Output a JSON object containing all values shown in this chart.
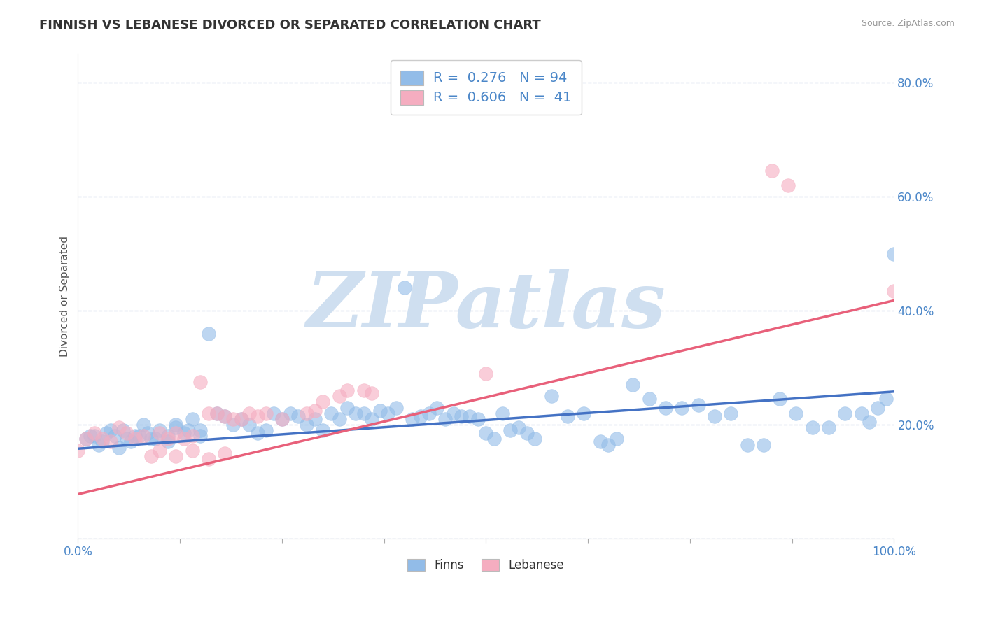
{
  "title": "FINNISH VS LEBANESE DIVORCED OR SEPARATED CORRELATION CHART",
  "source_text": "Source: ZipAtlas.com",
  "ylabel": "Divorced or Separated",
  "xlim": [
    0,
    1
  ],
  "ylim": [
    0,
    0.85
  ],
  "x_ticks": [
    0,
    0.125,
    0.25,
    0.375,
    0.5,
    0.625,
    0.75,
    0.875,
    1.0
  ],
  "x_tick_labels": [
    "0.0%",
    "",
    "",
    "",
    "",
    "",
    "",
    "",
    "100.0%"
  ],
  "y_ticks": [
    0.0,
    0.2,
    0.4,
    0.6,
    0.8
  ],
  "y_tick_labels": [
    "",
    "20.0%",
    "40.0%",
    "60.0%",
    "80.0%"
  ],
  "finn_color": "#92bce8",
  "lebanese_color": "#f5adc0",
  "finn_line_color": "#4472c4",
  "lebanese_line_color": "#e8607a",
  "title_fontsize": 13,
  "label_fontsize": 11,
  "tick_fontsize": 12,
  "watermark": "ZIPatlas",
  "watermark_color": "#cfdff0",
  "legend_R_finn": "R =  0.276",
  "legend_N_finn": "N = 94",
  "legend_R_leb": "R =  0.606",
  "legend_N_leb": "N =  41",
  "finn_intercept": 0.158,
  "finn_slope": 0.1,
  "leb_intercept": 0.078,
  "leb_slope": 0.34,
  "background_color": "#ffffff",
  "grid_color": "#c8d4e8",
  "finn_dots": [
    [
      0.01,
      0.175
    ],
    [
      0.015,
      0.18
    ],
    [
      0.02,
      0.18
    ],
    [
      0.025,
      0.165
    ],
    [
      0.03,
      0.17
    ],
    [
      0.035,
      0.185
    ],
    [
      0.04,
      0.19
    ],
    [
      0.045,
      0.18
    ],
    [
      0.05,
      0.16
    ],
    [
      0.055,
      0.19
    ],
    [
      0.06,
      0.175
    ],
    [
      0.065,
      0.17
    ],
    [
      0.07,
      0.18
    ],
    [
      0.075,
      0.18
    ],
    [
      0.08,
      0.2
    ],
    [
      0.085,
      0.185
    ],
    [
      0.09,
      0.175
    ],
    [
      0.095,
      0.175
    ],
    [
      0.1,
      0.19
    ],
    [
      0.11,
      0.17
    ],
    [
      0.11,
      0.18
    ],
    [
      0.12,
      0.2
    ],
    [
      0.12,
      0.195
    ],
    [
      0.13,
      0.185
    ],
    [
      0.135,
      0.19
    ],
    [
      0.14,
      0.21
    ],
    [
      0.15,
      0.19
    ],
    [
      0.15,
      0.18
    ],
    [
      0.16,
      0.36
    ],
    [
      0.17,
      0.22
    ],
    [
      0.18,
      0.215
    ],
    [
      0.19,
      0.2
    ],
    [
      0.2,
      0.21
    ],
    [
      0.21,
      0.2
    ],
    [
      0.22,
      0.185
    ],
    [
      0.23,
      0.19
    ],
    [
      0.24,
      0.22
    ],
    [
      0.25,
      0.21
    ],
    [
      0.26,
      0.22
    ],
    [
      0.27,
      0.215
    ],
    [
      0.28,
      0.2
    ],
    [
      0.29,
      0.21
    ],
    [
      0.3,
      0.19
    ],
    [
      0.31,
      0.22
    ],
    [
      0.32,
      0.21
    ],
    [
      0.33,
      0.23
    ],
    [
      0.34,
      0.22
    ],
    [
      0.35,
      0.22
    ],
    [
      0.36,
      0.21
    ],
    [
      0.37,
      0.225
    ],
    [
      0.38,
      0.22
    ],
    [
      0.39,
      0.23
    ],
    [
      0.4,
      0.44
    ],
    [
      0.41,
      0.21
    ],
    [
      0.42,
      0.215
    ],
    [
      0.43,
      0.22
    ],
    [
      0.44,
      0.23
    ],
    [
      0.45,
      0.21
    ],
    [
      0.46,
      0.22
    ],
    [
      0.47,
      0.215
    ],
    [
      0.48,
      0.215
    ],
    [
      0.49,
      0.21
    ],
    [
      0.5,
      0.185
    ],
    [
      0.51,
      0.175
    ],
    [
      0.52,
      0.22
    ],
    [
      0.53,
      0.19
    ],
    [
      0.54,
      0.195
    ],
    [
      0.55,
      0.185
    ],
    [
      0.56,
      0.175
    ],
    [
      0.58,
      0.25
    ],
    [
      0.6,
      0.215
    ],
    [
      0.62,
      0.22
    ],
    [
      0.64,
      0.17
    ],
    [
      0.65,
      0.165
    ],
    [
      0.66,
      0.175
    ],
    [
      0.68,
      0.27
    ],
    [
      0.7,
      0.245
    ],
    [
      0.72,
      0.23
    ],
    [
      0.74,
      0.23
    ],
    [
      0.76,
      0.235
    ],
    [
      0.78,
      0.215
    ],
    [
      0.8,
      0.22
    ],
    [
      0.82,
      0.165
    ],
    [
      0.84,
      0.165
    ],
    [
      0.86,
      0.245
    ],
    [
      0.88,
      0.22
    ],
    [
      0.9,
      0.195
    ],
    [
      0.92,
      0.195
    ],
    [
      0.94,
      0.22
    ],
    [
      0.96,
      0.22
    ],
    [
      0.97,
      0.205
    ],
    [
      0.98,
      0.23
    ],
    [
      0.99,
      0.245
    ],
    [
      1.0,
      0.5
    ]
  ],
  "leb_dots": [
    [
      0.0,
      0.155
    ],
    [
      0.01,
      0.175
    ],
    [
      0.02,
      0.185
    ],
    [
      0.03,
      0.175
    ],
    [
      0.04,
      0.17
    ],
    [
      0.05,
      0.195
    ],
    [
      0.06,
      0.185
    ],
    [
      0.07,
      0.175
    ],
    [
      0.08,
      0.18
    ],
    [
      0.09,
      0.145
    ],
    [
      0.1,
      0.185
    ],
    [
      0.1,
      0.155
    ],
    [
      0.11,
      0.175
    ],
    [
      0.12,
      0.185
    ],
    [
      0.12,
      0.145
    ],
    [
      0.13,
      0.175
    ],
    [
      0.14,
      0.18
    ],
    [
      0.14,
      0.155
    ],
    [
      0.15,
      0.275
    ],
    [
      0.16,
      0.22
    ],
    [
      0.16,
      0.14
    ],
    [
      0.17,
      0.22
    ],
    [
      0.18,
      0.215
    ],
    [
      0.18,
      0.15
    ],
    [
      0.19,
      0.21
    ],
    [
      0.2,
      0.21
    ],
    [
      0.21,
      0.22
    ],
    [
      0.22,
      0.215
    ],
    [
      0.23,
      0.22
    ],
    [
      0.25,
      0.21
    ],
    [
      0.28,
      0.22
    ],
    [
      0.29,
      0.225
    ],
    [
      0.3,
      0.24
    ],
    [
      0.32,
      0.25
    ],
    [
      0.33,
      0.26
    ],
    [
      0.35,
      0.26
    ],
    [
      0.36,
      0.255
    ],
    [
      0.5,
      0.29
    ],
    [
      0.85,
      0.645
    ],
    [
      0.87,
      0.62
    ],
    [
      1.0,
      0.435
    ]
  ]
}
